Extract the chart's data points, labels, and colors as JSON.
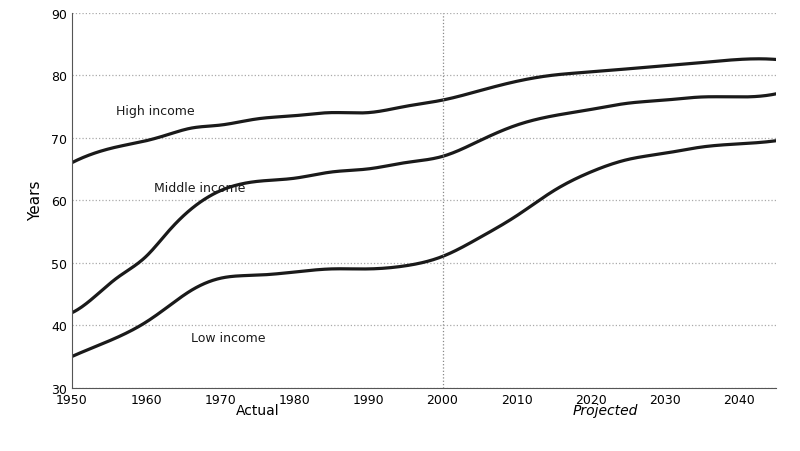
{
  "title": "",
  "ylabel": "Years",
  "xlabel_left": "Actual",
  "xlabel_right": "Projected",
  "ylim": [
    30,
    90
  ],
  "xlim": [
    1950,
    2045
  ],
  "divider_x": 2000,
  "grid_color": "#aaaaaa",
  "line_color": "#1a1a1a",
  "background_color": "#ffffff",
  "high_income_label": "High income",
  "middle_income_label": "Middle income",
  "low_income_label": "Low income",
  "high_income": {
    "x": [
      1950,
      1953,
      1956,
      1960,
      1963,
      1966,
      1970,
      1975,
      1980,
      1985,
      1990,
      1995,
      2000,
      2005,
      2010,
      2015,
      2020,
      2025,
      2030,
      2035,
      2040,
      2045
    ],
    "y": [
      66.0,
      67.5,
      68.5,
      69.5,
      70.5,
      71.5,
      72.0,
      73.0,
      73.5,
      74.0,
      74.0,
      75.0,
      76.0,
      77.5,
      79.0,
      80.0,
      80.5,
      81.0,
      81.5,
      82.0,
      82.5,
      82.5
    ]
  },
  "middle_income": {
    "x": [
      1950,
      1953,
      1956,
      1960,
      1963,
      1966,
      1970,
      1975,
      1980,
      1985,
      1990,
      1995,
      2000,
      2005,
      2010,
      2015,
      2020,
      2025,
      2030,
      2035,
      2040,
      2045
    ],
    "y": [
      42.0,
      44.5,
      47.5,
      51.0,
      55.0,
      58.5,
      61.5,
      63.0,
      63.5,
      64.5,
      65.0,
      66.0,
      67.0,
      69.5,
      72.0,
      73.5,
      74.5,
      75.5,
      76.0,
      76.5,
      76.5,
      77.0
    ]
  },
  "low_income": {
    "x": [
      1950,
      1953,
      1956,
      1960,
      1963,
      1966,
      1970,
      1975,
      1980,
      1985,
      1990,
      1995,
      2000,
      2005,
      2010,
      2015,
      2020,
      2025,
      2030,
      2035,
      2040,
      2045
    ],
    "y": [
      35.0,
      36.5,
      38.0,
      40.5,
      43.0,
      45.5,
      47.5,
      48.0,
      48.5,
      49.0,
      49.0,
      49.5,
      51.0,
      54.0,
      57.5,
      61.5,
      64.5,
      66.5,
      67.5,
      68.5,
      69.0,
      69.5
    ]
  },
  "yticks": [
    30,
    40,
    50,
    60,
    70,
    80,
    90
  ],
  "xticks": [
    1950,
    1960,
    1970,
    1980,
    1990,
    2000,
    2010,
    2020,
    2030,
    2040
  ]
}
